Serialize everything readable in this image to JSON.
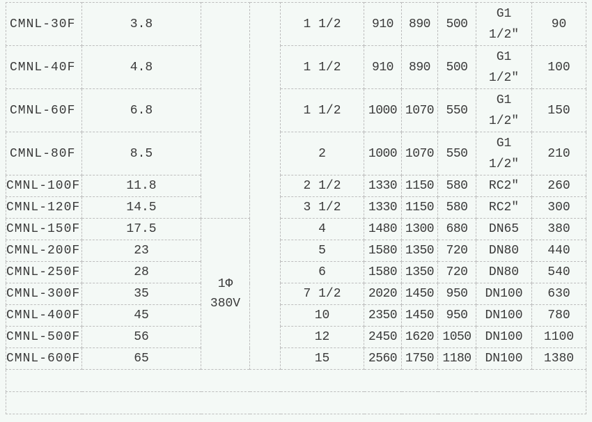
{
  "power_label": "1Φ",
  "voltage_label": "380V",
  "rows": [
    {
      "model": "CMNL-30F",
      "power": "3.8",
      "size": "1 1/2",
      "a": "910",
      "b": "890",
      "c": "500",
      "conn": "G1 1/2″",
      "conn1": "G1",
      "conn2": "1/2″",
      "weight": "90"
    },
    {
      "model": "CMNL-40F",
      "power": "4.8",
      "size": "1 1/2",
      "a": "910",
      "b": "890",
      "c": "500",
      "conn": "G1 1/2″",
      "conn1": "G1",
      "conn2": "1/2″",
      "weight": "100"
    },
    {
      "model": "CMNL-60F",
      "power": "6.8",
      "size": "1 1/2",
      "a": "1000",
      "b": "1070",
      "c": "550",
      "conn": "G1 1/2″",
      "conn1": "G1",
      "conn2": "1/2″",
      "weight": "150"
    },
    {
      "model": "CMNL-80F",
      "power": "8.5",
      "size": "2",
      "a": "1000",
      "b": "1070",
      "c": "550",
      "conn": "G1 1/2″",
      "conn1": "G1",
      "conn2": "1/2″",
      "weight": "210"
    },
    {
      "model": "CMNL-100F",
      "power": "11.8",
      "size": "2 1/2",
      "a": "1330",
      "b": "1150",
      "c": "580",
      "conn": "RC2″",
      "weight": "260"
    },
    {
      "model": "CMNL-120F",
      "power": "14.5",
      "size": "3 1/2",
      "a": "1330",
      "b": "1150",
      "c": "580",
      "conn": "RC2″",
      "weight": "300"
    },
    {
      "model": "CMNL-150F",
      "power": "17.5",
      "size": "4",
      "a": "1480",
      "b": "1300",
      "c": "680",
      "conn": "DN65",
      "weight": "380"
    },
    {
      "model": "CMNL-200F",
      "power": "23",
      "size": "5",
      "a": "1580",
      "b": "1350",
      "c": "720",
      "conn": "DN80",
      "weight": "440"
    },
    {
      "model": "CMNL-250F",
      "power": "28",
      "size": "6",
      "a": "1580",
      "b": "1350",
      "c": "720",
      "conn": "DN80",
      "weight": "540"
    },
    {
      "model": "CMNL-300F",
      "power": "35",
      "size": "7 1/2",
      "a": "2020",
      "b": "1450",
      "c": "950",
      "conn": "DN100",
      "weight": "630"
    },
    {
      "model": "CMNL-400F",
      "power": "45",
      "size": "10",
      "a": "2350",
      "b": "1450",
      "c": "950",
      "conn": "DN100",
      "weight": "780"
    },
    {
      "model": "CMNL-500F",
      "power": "56",
      "size": "12",
      "a": "2450",
      "b": "1620",
      "c": "1050",
      "conn": "DN100",
      "weight": "1100"
    },
    {
      "model": "CMNL-600F",
      "power": "65",
      "size": "15",
      "a": "2560",
      "b": "1750",
      "c": "1180",
      "conn": "DN100",
      "weight": "1380"
    }
  ]
}
